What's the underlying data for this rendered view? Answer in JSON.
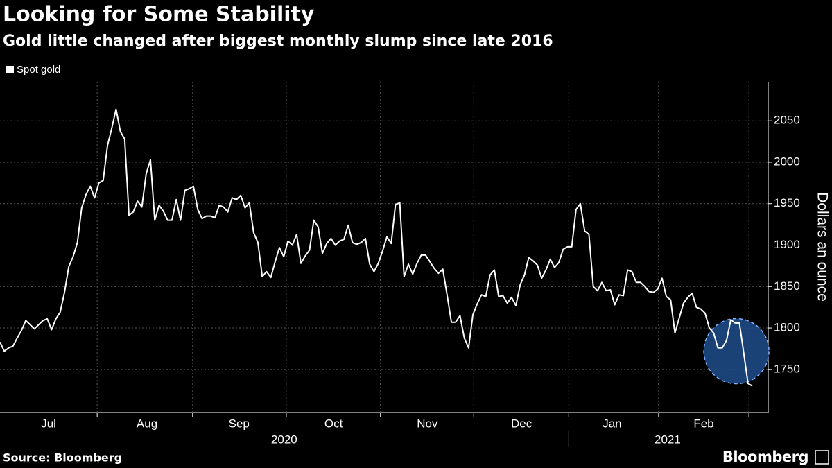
{
  "chart_data": {
    "type": "line",
    "title": "Looking for Some Stability",
    "subtitle": "Gold little changed after biggest monthly slump since late 2016",
    "y_label": "Dollars an ounce",
    "source": "Source: Bloomberg",
    "brand": "Bloomberg",
    "series": [
      {
        "name": "Spot gold",
        "color": "#ffffff",
        "values": [
          1783,
          1772,
          1776,
          1778,
          1788,
          1797,
          1809,
          1804,
          1799,
          1804,
          1809,
          1811,
          1798,
          1811,
          1819,
          1843,
          1874,
          1886,
          1903,
          1945,
          1961,
          1971,
          1957,
          1975,
          1978,
          2020,
          2041,
          2064,
          2037,
          2028,
          1936,
          1940,
          1953,
          1946,
          1986,
          2003,
          1930,
          1948,
          1941,
          1930,
          1930,
          1955,
          1930,
          1966,
          1968,
          1971,
          1943,
          1932,
          1935,
          1935,
          1933,
          1948,
          1946,
          1940,
          1957,
          1955,
          1960,
          1945,
          1951,
          1915,
          1903,
          1862,
          1868,
          1861,
          1880,
          1897,
          1886,
          1905,
          1900,
          1913,
          1878,
          1887,
          1894,
          1930,
          1922,
          1890,
          1902,
          1908,
          1900,
          1905,
          1907,
          1924,
          1903,
          1901,
          1903,
          1908,
          1877,
          1868,
          1878,
          1893,
          1910,
          1902,
          1949,
          1951,
          1862,
          1877,
          1865,
          1878,
          1888,
          1888,
          1880,
          1872,
          1866,
          1871,
          1840,
          1807,
          1807,
          1815,
          1788,
          1776,
          1816,
          1829,
          1840,
          1838,
          1864,
          1870,
          1838,
          1839,
          1830,
          1837,
          1827,
          1852,
          1864,
          1885,
          1881,
          1876,
          1860,
          1870,
          1883,
          1873,
          1879,
          1895,
          1898,
          1898,
          1943,
          1950,
          1917,
          1913,
          1850,
          1845,
          1855,
          1845,
          1846,
          1828,
          1840,
          1839,
          1870,
          1868,
          1855,
          1855,
          1850,
          1844,
          1843,
          1847,
          1860,
          1838,
          1834,
          1794,
          1812,
          1830,
          1837,
          1842,
          1825,
          1823,
          1818,
          1800,
          1794,
          1776,
          1776,
          1785,
          1810,
          1806,
          1806,
          1770,
          1733,
          1730
        ]
      }
    ],
    "xlim": [
      0,
      178.7
    ],
    "xticks": [
      {
        "value": 11.3,
        "label": "Jul"
      },
      {
        "value": 34.2,
        "label": "Aug"
      },
      {
        "value": 55.6,
        "label": "Sep"
      },
      {
        "value": 77.6,
        "label": "Oct"
      },
      {
        "value": 99.4,
        "label": "Nov"
      },
      {
        "value": 121.3,
        "label": "Dec"
      },
      {
        "value": 142.4,
        "label": "Jan"
      },
      {
        "value": 163.7,
        "label": "Feb"
      }
    ],
    "xgrid": [
      22.6,
      44.8,
      66.6,
      88.5,
      110.2,
      132.3,
      153.2,
      174.2
    ],
    "year_labels": [
      {
        "value": 66.1,
        "label": "2020"
      },
      {
        "value": 155.3,
        "label": "2021"
      }
    ],
    "year_divider": 132.3,
    "ylim": [
      1698,
      2097
    ],
    "yticks": [
      1750,
      1800,
      1850,
      1900,
      1950,
      2000,
      2050
    ],
    "grid": true,
    "highlight": {
      "x": 171.3,
      "y": 1772,
      "color": "#1f4e8c"
    }
  }
}
